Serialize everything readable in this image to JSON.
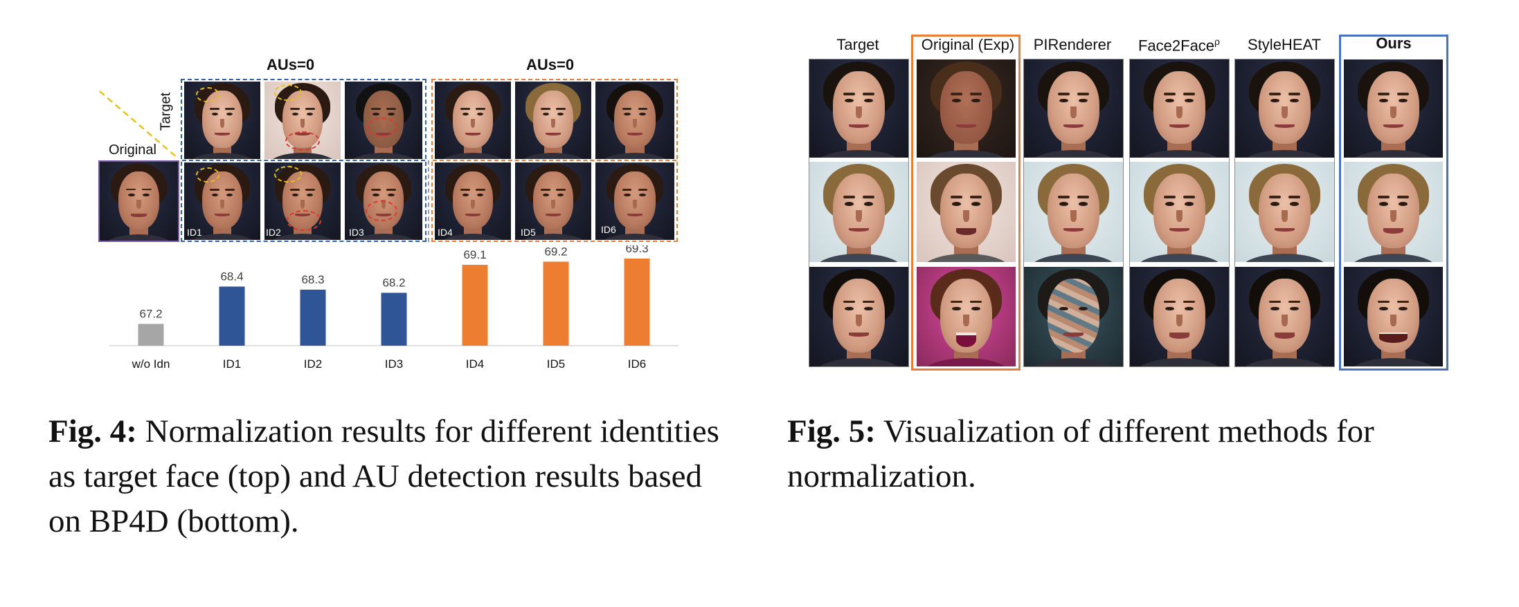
{
  "fig4": {
    "group_labels": [
      "AUs=0",
      "AUs=0"
    ],
    "target_label": "Target",
    "original_label": "Original",
    "id_labels": [
      "ID1",
      "ID2",
      "ID3",
      "ID4",
      "ID5",
      "ID6"
    ],
    "caption": {
      "prefix": "Fig. 4:",
      "text": "Normalization results for different identities as target face (top) and AU detection results based on BP4D (bottom)."
    }
  },
  "chart_data": {
    "type": "bar",
    "categories": [
      "w/o Idn",
      "ID1",
      "ID2",
      "ID3",
      "ID4",
      "ID5",
      "ID6"
    ],
    "values": [
      67.2,
      68.4,
      68.3,
      68.2,
      69.1,
      69.2,
      69.3
    ],
    "data_labels": [
      "67.2",
      "68.4",
      "68.3",
      "68.2",
      "69.1",
      "69.2",
      "69.3"
    ],
    "colors": [
      "#a6a6a6",
      "#2f5597",
      "#2f5597",
      "#2f5597",
      "#ed7d31",
      "#ed7d31",
      "#ed7d31"
    ],
    "title": "",
    "xlabel": "",
    "ylabel": "",
    "ylim": [
      66.5,
      69.5
    ],
    "grid": false
  },
  "fig5": {
    "columns": [
      "Target",
      "Original (Exp)",
      "PIRenderer",
      "Face2Face",
      "StyleHEAT",
      "Ours"
    ],
    "face2face_superscript": "ρ",
    "caption": {
      "prefix": "Fig. 5:",
      "text": "Visualization of different methods for normalization."
    }
  },
  "colors": {
    "blue_accent": "#2f5fb5",
    "orange_accent": "#ea7c33",
    "purple_frame": "#7b58a8"
  }
}
